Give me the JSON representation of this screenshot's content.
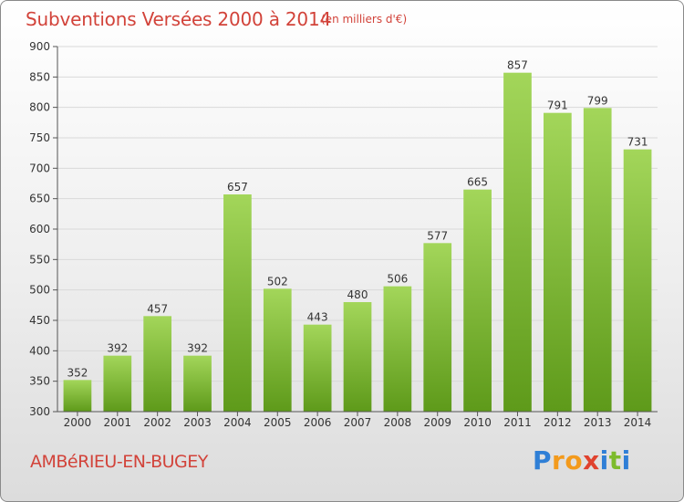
{
  "header": {
    "title": "Subventions Versées 2000 à 2014",
    "unit_note": "(en milliers d'€)"
  },
  "footer": {
    "town": "AMBéRIEU-EN-BUGEY",
    "logo": {
      "letters": [
        "P",
        "r",
        "o",
        "x",
        "i",
        "t",
        "i"
      ],
      "colors": [
        "#2f7fd6",
        "#f39a1c",
        "#f39a1c",
        "#e0422e",
        "#2f7fd6",
        "#7dbb2c",
        "#2f7fd6"
      ]
    }
  },
  "chart_data": {
    "type": "bar",
    "categories": [
      "2000",
      "2001",
      "2002",
      "2003",
      "2004",
      "2005",
      "2006",
      "2007",
      "2008",
      "2009",
      "2010",
      "2011",
      "2012",
      "2013",
      "2014"
    ],
    "values": [
      352,
      392,
      457,
      392,
      657,
      502,
      443,
      480,
      506,
      577,
      665,
      857,
      791,
      799,
      731
    ],
    "ylim": [
      300,
      900
    ],
    "yticks": [
      300,
      350,
      400,
      450,
      500,
      550,
      600,
      650,
      700,
      750,
      800,
      850,
      900
    ],
    "grid": true,
    "bar_color_top": "#a3d65a",
    "bar_color_bottom": "#5e9a1a",
    "grid_color": "#d9d9d9"
  }
}
